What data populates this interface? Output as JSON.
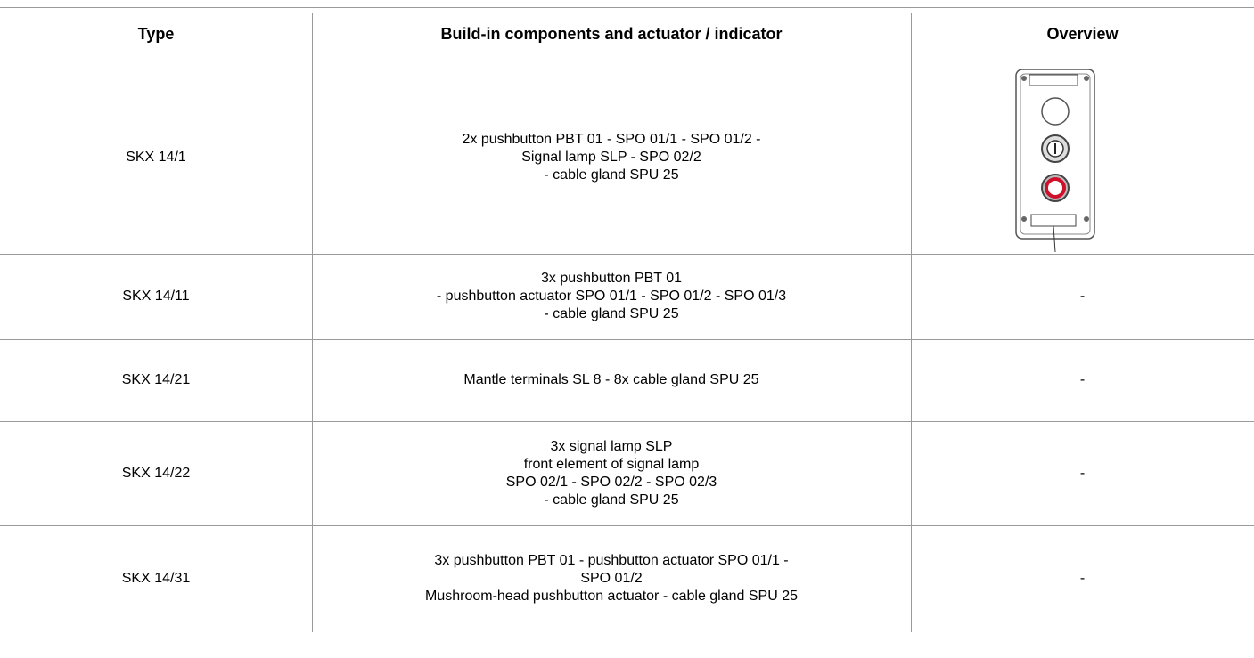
{
  "table": {
    "header": [
      "Type",
      "Build-in components and actuator / indicator",
      "Overview"
    ],
    "rows": [
      {
        "type": "SKX 14/1",
        "components": [
          "2x pushbutton PBT 01 - SPO 01/1 - SPO 01/2 -",
          "Signal lamp SLP - SPO 02/2",
          "- cable gland SPU 25"
        ]
      },
      {
        "type": "SKX 14/11",
        "components": [
          "3x pushbutton PBT 01",
          "- pushbutton actuator SPO 01/1 - SPO 01/2 - SPO 01/3",
          "- cable gland SPU 25"
        ],
        "overview": "-"
      },
      {
        "type": "SKX 14/21",
        "components": [
          "Mantle terminals SL 8 - 8x cable gland SPU 25"
        ],
        "overview": "-"
      },
      {
        "type": "SKX 14/22",
        "components": [
          "3x signal lamp SLP",
          "front element of signal lamp",
          "SPO 02/1 - SPO 02/2 - SPO 02/3",
          "- cable gland SPU 25"
        ],
        "overview": "-"
      },
      {
        "type": "SKX 14/31",
        "components": [
          "3x pushbutton PBT 01 - pushbutton actuator SPO 01/1 -",
          "SPO 01/2",
          "Mushroom-head pushbutton actuator - cable gland SPU 25"
        ],
        "overview": "-"
      }
    ]
  }
}
